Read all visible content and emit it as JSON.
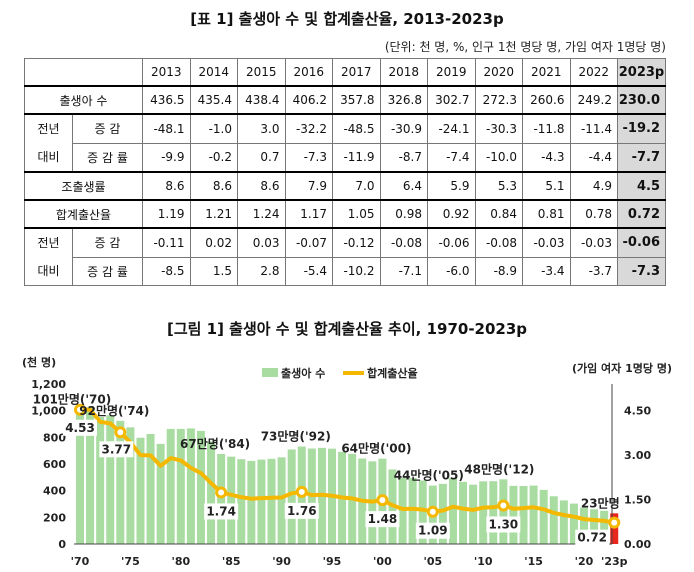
{
  "table": {
    "title": "[표 1] 출생아 수 및 합계출산율, 2013-2023p",
    "unit": "(단위: 천 명, %, 인구 1천 명당 명, 가임 여자 1명당 명)",
    "years": [
      "2013",
      "2014",
      "2015",
      "2016",
      "2017",
      "2018",
      "2019",
      "2020",
      "2021",
      "2022",
      "2023p"
    ],
    "group_label_1": "전년",
    "group_label_2": "대비",
    "rows": [
      {
        "label": "출생아 수",
        "values": [
          "436.5",
          "435.4",
          "438.4",
          "406.2",
          "357.8",
          "326.8",
          "302.7",
          "272.3",
          "260.6",
          "249.2",
          "230.0"
        ]
      },
      {
        "label": "증 감",
        "values": [
          "-48.1",
          "-1.0",
          "3.0",
          "-32.2",
          "-48.5",
          "-30.9",
          "-24.1",
          "-30.3",
          "-11.8",
          "-11.4",
          "-19.2"
        ]
      },
      {
        "label": "증 감 률",
        "values": [
          "-9.9",
          "-0.2",
          "0.7",
          "-7.3",
          "-11.9",
          "-8.7",
          "-7.4",
          "-10.0",
          "-4.3",
          "-4.4",
          "-7.7"
        ]
      },
      {
        "label": "조출생률",
        "values": [
          "8.6",
          "8.6",
          "8.6",
          "7.9",
          "7.0",
          "6.4",
          "5.9",
          "5.3",
          "5.1",
          "4.9",
          "4.5"
        ]
      },
      {
        "label": "합계출산율",
        "values": [
          "1.19",
          "1.21",
          "1.24",
          "1.17",
          "1.05",
          "0.98",
          "0.92",
          "0.84",
          "0.81",
          "0.78",
          "0.72"
        ]
      },
      {
        "label": "증 감",
        "values": [
          "-0.11",
          "0.02",
          "0.03",
          "-0.07",
          "-0.12",
          "-0.08",
          "-0.06",
          "-0.08",
          "-0.03",
          "-0.03",
          "-0.06"
        ]
      },
      {
        "label": "증 감 률",
        "values": [
          "-8.5",
          "1.5",
          "2.8",
          "-5.4",
          "-10.2",
          "-7.1",
          "-6.0",
          "-8.9",
          "-3.4",
          "-3.7",
          "-7.3"
        ]
      }
    ]
  },
  "chart_data": {
    "type": "bar+line",
    "title": "[그림 1] 출생아 수 및 합계출산율 추이, 1970-2023p",
    "left_axis_label": "(천 명)",
    "right_axis_label": "(가임 여자 1명당 명)",
    "left_ticks": [
      "0",
      "200",
      "400",
      "600",
      "800",
      "1,000",
      "1,200"
    ],
    "right_ticks": [
      "0.00",
      "1.50",
      "3.00",
      "4.50"
    ],
    "ylim_left": [
      0,
      1200
    ],
    "ylim_right": [
      0,
      5.4
    ],
    "legend": [
      "출생아 수",
      "합계출산율"
    ],
    "x_ticks": [
      "'70",
      "'75",
      "'80",
      "'85",
      "'90",
      "'95",
      "'00",
      "'05",
      "'10",
      "'15",
      "'20",
      "'23p"
    ],
    "years": [
      1970,
      1971,
      1972,
      1973,
      1974,
      1975,
      1976,
      1977,
      1978,
      1979,
      1980,
      1981,
      1982,
      1983,
      1984,
      1985,
      1986,
      1987,
      1988,
      1989,
      1990,
      1991,
      1992,
      1993,
      1994,
      1995,
      1996,
      1997,
      1998,
      1999,
      2000,
      2001,
      2002,
      2003,
      2004,
      2005,
      2006,
      2007,
      2008,
      2009,
      2010,
      2011,
      2012,
      2013,
      2014,
      2015,
      2016,
      2017,
      2018,
      2019,
      2020,
      2021,
      2022,
      2023
    ],
    "births": [
      1007,
      1025,
      952,
      965,
      924,
      875,
      797,
      825,
      751,
      863,
      863,
      867,
      848,
      769,
      675,
      655,
      636,
      623,
      633,
      639,
      650,
      709,
      731,
      716,
      721,
      715,
      691,
      676,
      641,
      620,
      640,
      559,
      497,
      495,
      476,
      438,
      451,
      497,
      466,
      445,
      470,
      471,
      485,
      436,
      435,
      438,
      406,
      358,
      327,
      303,
      272,
      261,
      249,
      230
    ],
    "tfr": [
      4.53,
      4.54,
      4.12,
      4.07,
      3.77,
      3.43,
      3.0,
      2.99,
      2.64,
      2.9,
      2.82,
      2.57,
      2.39,
      2.06,
      1.74,
      1.66,
      1.58,
      1.53,
      1.55,
      1.56,
      1.57,
      1.71,
      1.76,
      1.65,
      1.66,
      1.63,
      1.57,
      1.54,
      1.46,
      1.43,
      1.48,
      1.31,
      1.18,
      1.19,
      1.16,
      1.09,
      1.13,
      1.26,
      1.19,
      1.15,
      1.23,
      1.24,
      1.3,
      1.19,
      1.21,
      1.24,
      1.17,
      1.05,
      0.98,
      0.92,
      0.84,
      0.81,
      0.78,
      0.72
    ],
    "births_annotations": [
      {
        "text": "101만명('70)",
        "year": 1970
      },
      {
        "text": "92만명('74)",
        "year": 1974
      },
      {
        "text": "67만명('84)",
        "year": 1984
      },
      {
        "text": "73만명('92)",
        "year": 1992
      },
      {
        "text": "64만명('00)",
        "year": 2000
      },
      {
        "text": "44만명('05)",
        "year": 2005
      },
      {
        "text": "48만명('12)",
        "year": 2012
      },
      {
        "text": "23만명",
        "year": 2023
      }
    ],
    "tfr_annotations": [
      {
        "text": "4.53",
        "year": 1970
      },
      {
        "text": "3.77",
        "year": 1974
      },
      {
        "text": "1.74",
        "year": 1984
      },
      {
        "text": "1.76",
        "year": 1992
      },
      {
        "text": "1.48",
        "year": 2000
      },
      {
        "text": "1.09",
        "year": 2005
      },
      {
        "text": "1.30",
        "year": 2012
      },
      {
        "text": "0.72",
        "year": 2023
      }
    ],
    "colors": {
      "bar": "#a8dca0",
      "bar_last": "#e8261c",
      "line": "#f5b800",
      "marker_fill": "#ffffff"
    }
  }
}
